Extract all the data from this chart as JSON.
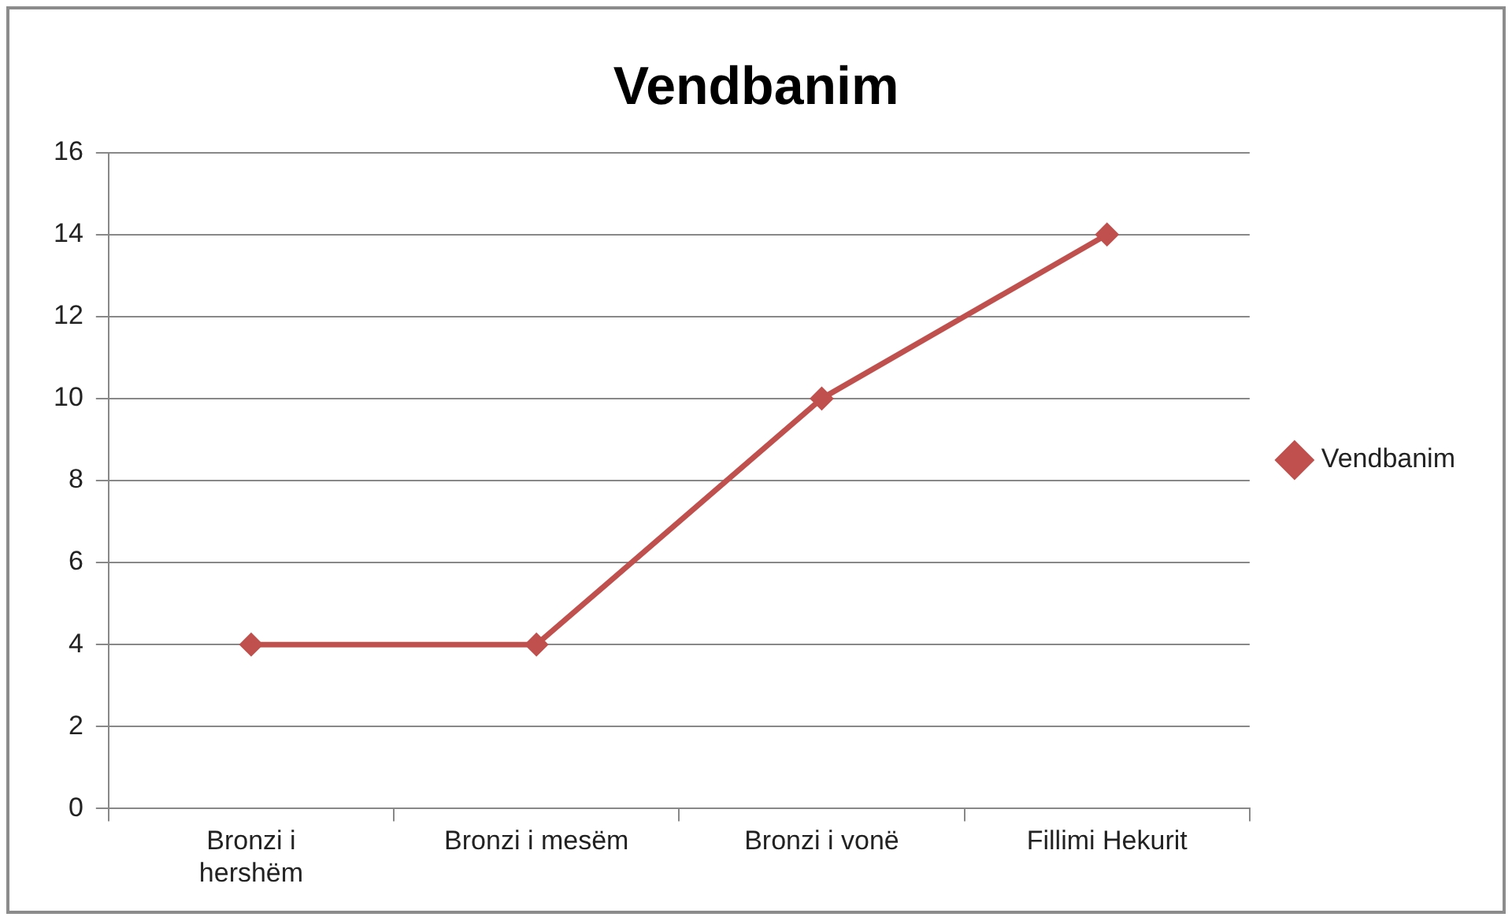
{
  "chart_data": {
    "type": "line",
    "title": "Vendbanim",
    "categories": [
      "Bronzi i hershëm",
      "Bronzi i mesëm",
      "Bronzi i vonë",
      "Fillimi Hekurit"
    ],
    "series": [
      {
        "name": "Vendbanim",
        "color": "#c0504d",
        "values": [
          4,
          4,
          10,
          14
        ]
      }
    ],
    "ylim": [
      0,
      16
    ],
    "yticks": [
      0,
      2,
      4,
      6,
      8,
      10,
      12,
      14,
      16
    ],
    "grid": "y",
    "legend": "right",
    "marker": "diamond",
    "line_style": "solid"
  }
}
